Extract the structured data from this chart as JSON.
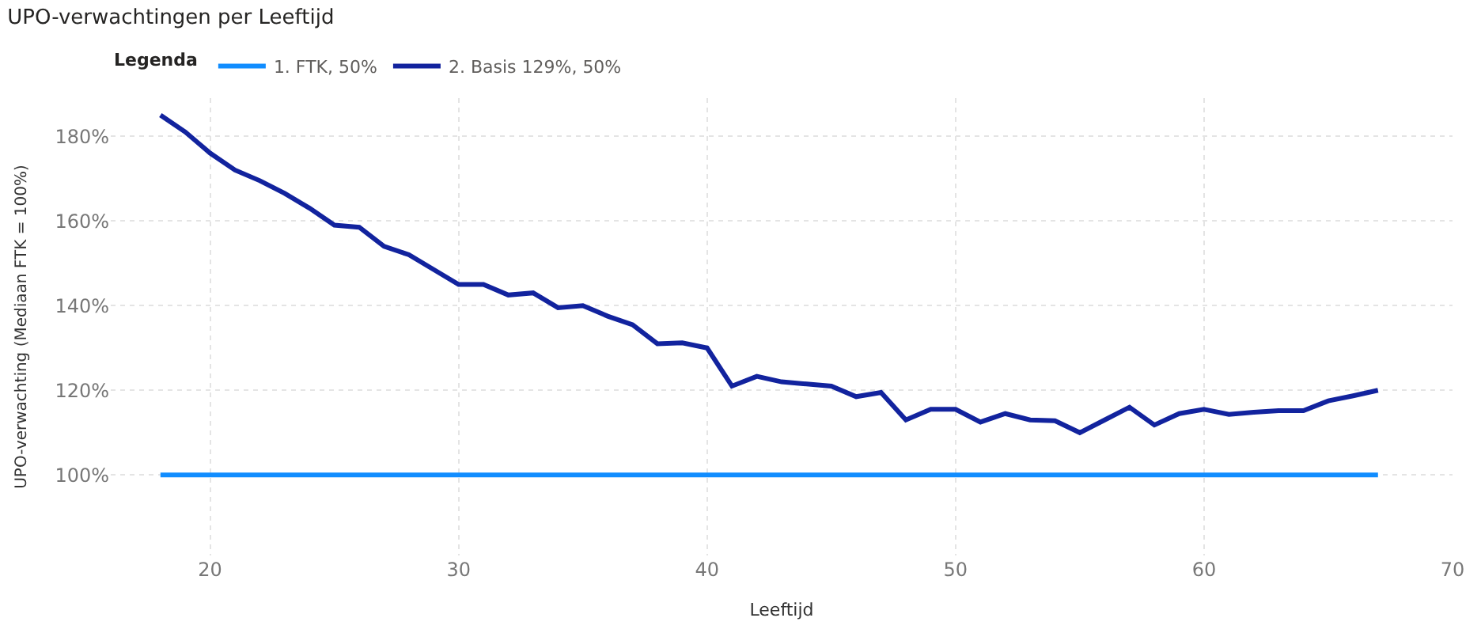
{
  "chart_data": {
    "type": "line",
    "title": "UPO-verwachtingen per Leeftijd",
    "xlabel": "Leeftijd",
    "ylabel": "UPO-verwachting (Mediaan FTK = 100%)",
    "legend_title": "Legenda",
    "legend": "top left",
    "grid": true,
    "marker": "none",
    "line_style": "solid",
    "x": [
      18,
      19,
      20,
      21,
      22,
      23,
      24,
      25,
      26,
      27,
      28,
      29,
      30,
      31,
      32,
      33,
      34,
      35,
      36,
      37,
      38,
      39,
      40,
      41,
      42,
      43,
      44,
      45,
      46,
      47,
      48,
      49,
      50,
      51,
      52,
      53,
      54,
      55,
      56,
      57,
      58,
      59,
      60,
      61,
      62,
      63,
      64,
      65,
      66,
      67
    ],
    "series": [
      {
        "name": "1. FTK, 50%",
        "color": "#118dff",
        "values": [
          100,
          100,
          100,
          100,
          100,
          100,
          100,
          100,
          100,
          100,
          100,
          100,
          100,
          100,
          100,
          100,
          100,
          100,
          100,
          100,
          100,
          100,
          100,
          100,
          100,
          100,
          100,
          100,
          100,
          100,
          100,
          100,
          100,
          100,
          100,
          100,
          100,
          100,
          100,
          100,
          100,
          100,
          100,
          100,
          100,
          100,
          100,
          100,
          100,
          100
        ]
      },
      {
        "name": "2. Basis 129%, 50%",
        "color": "#12239e",
        "values": [
          185,
          181,
          176,
          172,
          169.5,
          166.5,
          163,
          159,
          158.5,
          154,
          152,
          148.5,
          145,
          145,
          142.5,
          143,
          139.5,
          140,
          137.5,
          135.5,
          131,
          131.2,
          130,
          121,
          123.3,
          122,
          121.5,
          121,
          118.5,
          119.5,
          113,
          115.5,
          115.5,
          112.5,
          114.5,
          113,
          112.8,
          110,
          113,
          116,
          111.8,
          114.5,
          115.5,
          114.3,
          114.8,
          115.2,
          115.2,
          117.5,
          118.7,
          120
        ]
      }
    ],
    "xlim": [
      16,
      70
    ],
    "xticks": [
      20,
      30,
      40,
      50,
      60,
      70
    ],
    "ylim": [
      81,
      189
    ],
    "yticks": [
      {
        "value": 100,
        "label": "100%"
      },
      {
        "value": 120,
        "label": "120%"
      },
      {
        "value": 140,
        "label": "140%"
      },
      {
        "value": 160,
        "label": "160%"
      },
      {
        "value": 180,
        "label": "180%"
      }
    ]
  }
}
